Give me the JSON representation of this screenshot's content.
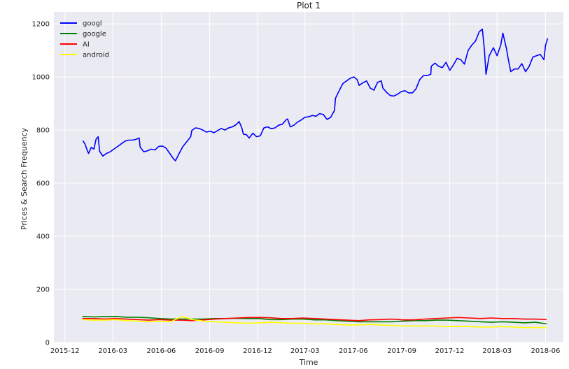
{
  "chart_data": {
    "type": "line",
    "title": "Plot 1",
    "xlabel": "Time",
    "ylabel": "Prices & Search Frequency",
    "x_type": "date",
    "xlim": [
      "2015-11-10",
      "2018-07-05"
    ],
    "ylim": [
      0,
      1245
    ],
    "grid": true,
    "legend_position": "top-left",
    "x_ticks": [
      "2015-12",
      "2016-03",
      "2016-06",
      "2016-09",
      "2016-12",
      "2017-03",
      "2017-06",
      "2017-09",
      "2017-12",
      "2018-03",
      "2018-06"
    ],
    "y_ticks": [
      0,
      200,
      400,
      600,
      800,
      1000,
      1200
    ],
    "series": [
      {
        "name": "googl",
        "color": "#0000ff",
        "points": [
          [
            "2016-01-04",
            760
          ],
          [
            "2016-01-08",
            748
          ],
          [
            "2016-01-12",
            725
          ],
          [
            "2016-01-15",
            712
          ],
          [
            "2016-01-20",
            735
          ],
          [
            "2016-01-25",
            728
          ],
          [
            "2016-01-29",
            765
          ],
          [
            "2016-02-02",
            775
          ],
          [
            "2016-02-05",
            720
          ],
          [
            "2016-02-11",
            702
          ],
          [
            "2016-02-18",
            712
          ],
          [
            "2016-02-25",
            718
          ],
          [
            "2016-03-03",
            728
          ],
          [
            "2016-03-10",
            738
          ],
          [
            "2016-03-17",
            748
          ],
          [
            "2016-03-24",
            758
          ],
          [
            "2016-03-31",
            762
          ],
          [
            "2016-04-07",
            762
          ],
          [
            "2016-04-14",
            765
          ],
          [
            "2016-04-20",
            770
          ],
          [
            "2016-04-22",
            735
          ],
          [
            "2016-04-29",
            718
          ],
          [
            "2016-05-06",
            722
          ],
          [
            "2016-05-13",
            728
          ],
          [
            "2016-05-20",
            725
          ],
          [
            "2016-05-27",
            738
          ],
          [
            "2016-06-03",
            740
          ],
          [
            "2016-06-10",
            732
          ],
          [
            "2016-06-17",
            712
          ],
          [
            "2016-06-24",
            692
          ],
          [
            "2016-06-28",
            684
          ],
          [
            "2016-07-05",
            712
          ],
          [
            "2016-07-12",
            738
          ],
          [
            "2016-07-19",
            755
          ],
          [
            "2016-07-27",
            775
          ],
          [
            "2016-07-29",
            798
          ],
          [
            "2016-08-05",
            808
          ],
          [
            "2016-08-12",
            806
          ],
          [
            "2016-08-19",
            800
          ],
          [
            "2016-08-26",
            792
          ],
          [
            "2016-09-02",
            796
          ],
          [
            "2016-09-09",
            790
          ],
          [
            "2016-09-16",
            798
          ],
          [
            "2016-09-23",
            806
          ],
          [
            "2016-09-30",
            800
          ],
          [
            "2016-10-07",
            808
          ],
          [
            "2016-10-14",
            812
          ],
          [
            "2016-10-21",
            820
          ],
          [
            "2016-10-27",
            832
          ],
          [
            "2016-11-01",
            808
          ],
          [
            "2016-11-04",
            785
          ],
          [
            "2016-11-10",
            782
          ],
          [
            "2016-11-15",
            770
          ],
          [
            "2016-11-22",
            788
          ],
          [
            "2016-11-29",
            775
          ],
          [
            "2016-12-06",
            778
          ],
          [
            "2016-12-13",
            808
          ],
          [
            "2016-12-20",
            812
          ],
          [
            "2016-12-27",
            805
          ],
          [
            "2017-01-03",
            808
          ],
          [
            "2017-01-10",
            818
          ],
          [
            "2017-01-17",
            822
          ],
          [
            "2017-01-24",
            838
          ],
          [
            "2017-01-27",
            842
          ],
          [
            "2017-02-01",
            812
          ],
          [
            "2017-02-08",
            818
          ],
          [
            "2017-02-15",
            830
          ],
          [
            "2017-02-22",
            838
          ],
          [
            "2017-03-01",
            848
          ],
          [
            "2017-03-08",
            850
          ],
          [
            "2017-03-15",
            855
          ],
          [
            "2017-03-22",
            852
          ],
          [
            "2017-03-29",
            862
          ],
          [
            "2017-04-05",
            858
          ],
          [
            "2017-04-12",
            840
          ],
          [
            "2017-04-19",
            848
          ],
          [
            "2017-04-26",
            874
          ],
          [
            "2017-04-28",
            920
          ],
          [
            "2017-05-05",
            948
          ],
          [
            "2017-05-12",
            975
          ],
          [
            "2017-05-19",
            985
          ],
          [
            "2017-05-26",
            995
          ],
          [
            "2017-06-02",
            1000
          ],
          [
            "2017-06-08",
            990
          ],
          [
            "2017-06-12",
            968
          ],
          [
            "2017-06-19",
            978
          ],
          [
            "2017-06-26",
            985
          ],
          [
            "2017-07-03",
            958
          ],
          [
            "2017-07-10",
            950
          ],
          [
            "2017-07-17",
            980
          ],
          [
            "2017-07-24",
            985
          ],
          [
            "2017-07-27",
            958
          ],
          [
            "2017-08-03",
            942
          ],
          [
            "2017-08-10",
            930
          ],
          [
            "2017-08-17",
            928
          ],
          [
            "2017-08-24",
            935
          ],
          [
            "2017-08-31",
            945
          ],
          [
            "2017-09-07",
            948
          ],
          [
            "2017-09-14",
            940
          ],
          [
            "2017-09-21",
            940
          ],
          [
            "2017-09-28",
            955
          ],
          [
            "2017-10-05",
            990
          ],
          [
            "2017-10-12",
            1005
          ],
          [
            "2017-10-19",
            1005
          ],
          [
            "2017-10-26",
            1010
          ],
          [
            "2017-10-27",
            1040
          ],
          [
            "2017-11-03",
            1052
          ],
          [
            "2017-11-10",
            1040
          ],
          [
            "2017-11-17",
            1035
          ],
          [
            "2017-11-24",
            1055
          ],
          [
            "2017-12-01",
            1025
          ],
          [
            "2017-12-08",
            1045
          ],
          [
            "2017-12-15",
            1070
          ],
          [
            "2017-12-22",
            1065
          ],
          [
            "2017-12-29",
            1048
          ],
          [
            "2018-01-05",
            1100
          ],
          [
            "2018-01-12",
            1120
          ],
          [
            "2018-01-19",
            1135
          ],
          [
            "2018-01-26",
            1170
          ],
          [
            "2018-02-01",
            1180
          ],
          [
            "2018-02-05",
            1100
          ],
          [
            "2018-02-08",
            1010
          ],
          [
            "2018-02-14",
            1080
          ],
          [
            "2018-02-22",
            1110
          ],
          [
            "2018-03-01",
            1080
          ],
          [
            "2018-03-08",
            1120
          ],
          [
            "2018-03-12",
            1165
          ],
          [
            "2018-03-19",
            1105
          ],
          [
            "2018-03-22",
            1070
          ],
          [
            "2018-03-27",
            1020
          ],
          [
            "2018-04-03",
            1030
          ],
          [
            "2018-04-10",
            1030
          ],
          [
            "2018-04-17",
            1050
          ],
          [
            "2018-04-24",
            1020
          ],
          [
            "2018-05-01",
            1040
          ],
          [
            "2018-05-08",
            1075
          ],
          [
            "2018-05-15",
            1080
          ],
          [
            "2018-05-22",
            1085
          ],
          [
            "2018-05-29",
            1065
          ],
          [
            "2018-06-01",
            1118
          ],
          [
            "2018-06-05",
            1145
          ]
        ]
      },
      {
        "name": "google",
        "color": "#008000",
        "points": [
          [
            "2016-01-03",
            98
          ],
          [
            "2016-01-24",
            96
          ],
          [
            "2016-02-14",
            97
          ],
          [
            "2016-03-06",
            98
          ],
          [
            "2016-03-27",
            95
          ],
          [
            "2016-04-17",
            95
          ],
          [
            "2016-05-08",
            93
          ],
          [
            "2016-05-29",
            90
          ],
          [
            "2016-06-19",
            88
          ],
          [
            "2016-07-10",
            88
          ],
          [
            "2016-07-31",
            88
          ],
          [
            "2016-08-21",
            88
          ],
          [
            "2016-09-11",
            90
          ],
          [
            "2016-10-02",
            90
          ],
          [
            "2016-10-23",
            91
          ],
          [
            "2016-11-13",
            90
          ],
          [
            "2016-12-04",
            90
          ],
          [
            "2016-12-25",
            86
          ],
          [
            "2017-01-15",
            86
          ],
          [
            "2017-02-05",
            88
          ],
          [
            "2017-02-26",
            88
          ],
          [
            "2017-03-19",
            85
          ],
          [
            "2017-04-09",
            85
          ],
          [
            "2017-04-30",
            82
          ],
          [
            "2017-05-21",
            80
          ],
          [
            "2017-06-11",
            78
          ],
          [
            "2017-07-02",
            78
          ],
          [
            "2017-07-23",
            78
          ],
          [
            "2017-08-13",
            78
          ],
          [
            "2017-09-03",
            80
          ],
          [
            "2017-09-24",
            82
          ],
          [
            "2017-10-15",
            82
          ],
          [
            "2017-11-05",
            84
          ],
          [
            "2017-11-26",
            84
          ],
          [
            "2017-12-17",
            82
          ],
          [
            "2018-01-07",
            80
          ],
          [
            "2018-01-28",
            78
          ],
          [
            "2018-02-18",
            76
          ],
          [
            "2018-03-11",
            78
          ],
          [
            "2018-04-01",
            76
          ],
          [
            "2018-04-22",
            74
          ],
          [
            "2018-05-13",
            76
          ],
          [
            "2018-06-03",
            70
          ]
        ]
      },
      {
        "name": "AI",
        "color": "#ff0000",
        "points": [
          [
            "2016-01-03",
            90
          ],
          [
            "2016-01-24",
            90
          ],
          [
            "2016-02-14",
            88
          ],
          [
            "2016-03-06",
            90
          ],
          [
            "2016-03-27",
            88
          ],
          [
            "2016-04-17",
            86
          ],
          [
            "2016-05-08",
            84
          ],
          [
            "2016-05-29",
            86
          ],
          [
            "2016-06-19",
            84
          ],
          [
            "2016-07-10",
            84
          ],
          [
            "2016-07-31",
            82
          ],
          [
            "2016-08-21",
            85
          ],
          [
            "2016-09-11",
            88
          ],
          [
            "2016-10-02",
            90
          ],
          [
            "2016-10-23",
            92
          ],
          [
            "2016-11-13",
            94
          ],
          [
            "2016-12-04",
            94
          ],
          [
            "2016-12-25",
            93
          ],
          [
            "2017-01-15",
            90
          ],
          [
            "2017-02-05",
            90
          ],
          [
            "2017-02-26",
            92
          ],
          [
            "2017-03-19",
            90
          ],
          [
            "2017-04-09",
            88
          ],
          [
            "2017-04-30",
            86
          ],
          [
            "2017-05-21",
            84
          ],
          [
            "2017-06-11",
            82
          ],
          [
            "2017-07-02",
            85
          ],
          [
            "2017-07-23",
            86
          ],
          [
            "2017-08-13",
            88
          ],
          [
            "2017-09-03",
            85
          ],
          [
            "2017-09-24",
            85
          ],
          [
            "2017-10-15",
            88
          ],
          [
            "2017-11-05",
            90
          ],
          [
            "2017-11-26",
            92
          ],
          [
            "2017-12-17",
            94
          ],
          [
            "2018-01-07",
            92
          ],
          [
            "2018-01-28",
            90
          ],
          [
            "2018-02-18",
            92
          ],
          [
            "2018-03-11",
            90
          ],
          [
            "2018-04-01",
            90
          ],
          [
            "2018-04-22",
            88
          ],
          [
            "2018-05-13",
            88
          ],
          [
            "2018-06-03",
            86
          ]
        ]
      },
      {
        "name": "android",
        "color": "#ffff00",
        "points": [
          [
            "2016-01-03",
            86
          ],
          [
            "2016-01-24",
            84
          ],
          [
            "2016-02-14",
            84
          ],
          [
            "2016-03-06",
            86
          ],
          [
            "2016-03-27",
            82
          ],
          [
            "2016-04-17",
            80
          ],
          [
            "2016-05-08",
            78
          ],
          [
            "2016-05-29",
            80
          ],
          [
            "2016-06-19",
            78
          ],
          [
            "2016-07-10",
            98
          ],
          [
            "2016-07-31",
            86
          ],
          [
            "2016-08-21",
            80
          ],
          [
            "2016-09-11",
            78
          ],
          [
            "2016-10-02",
            76
          ],
          [
            "2016-10-23",
            74
          ],
          [
            "2016-11-13",
            72
          ],
          [
            "2016-12-04",
            74
          ],
          [
            "2016-12-25",
            76
          ],
          [
            "2017-01-15",
            74
          ],
          [
            "2017-02-05",
            72
          ],
          [
            "2017-02-26",
            72
          ],
          [
            "2017-03-19",
            70
          ],
          [
            "2017-04-09",
            70
          ],
          [
            "2017-04-30",
            68
          ],
          [
            "2017-05-21",
            66
          ],
          [
            "2017-06-11",
            66
          ],
          [
            "2017-07-02",
            68
          ],
          [
            "2017-07-23",
            66
          ],
          [
            "2017-08-13",
            64
          ],
          [
            "2017-09-03",
            62
          ],
          [
            "2017-09-24",
            62
          ],
          [
            "2017-10-15",
            62
          ],
          [
            "2017-11-05",
            62
          ],
          [
            "2017-11-26",
            60
          ],
          [
            "2017-12-17",
            60
          ],
          [
            "2018-01-07",
            60
          ],
          [
            "2018-01-28",
            58
          ],
          [
            "2018-02-18",
            58
          ],
          [
            "2018-03-11",
            60
          ],
          [
            "2018-04-01",
            58
          ],
          [
            "2018-04-22",
            56
          ],
          [
            "2018-05-13",
            56
          ],
          [
            "2018-06-03",
            56
          ]
        ]
      }
    ]
  }
}
